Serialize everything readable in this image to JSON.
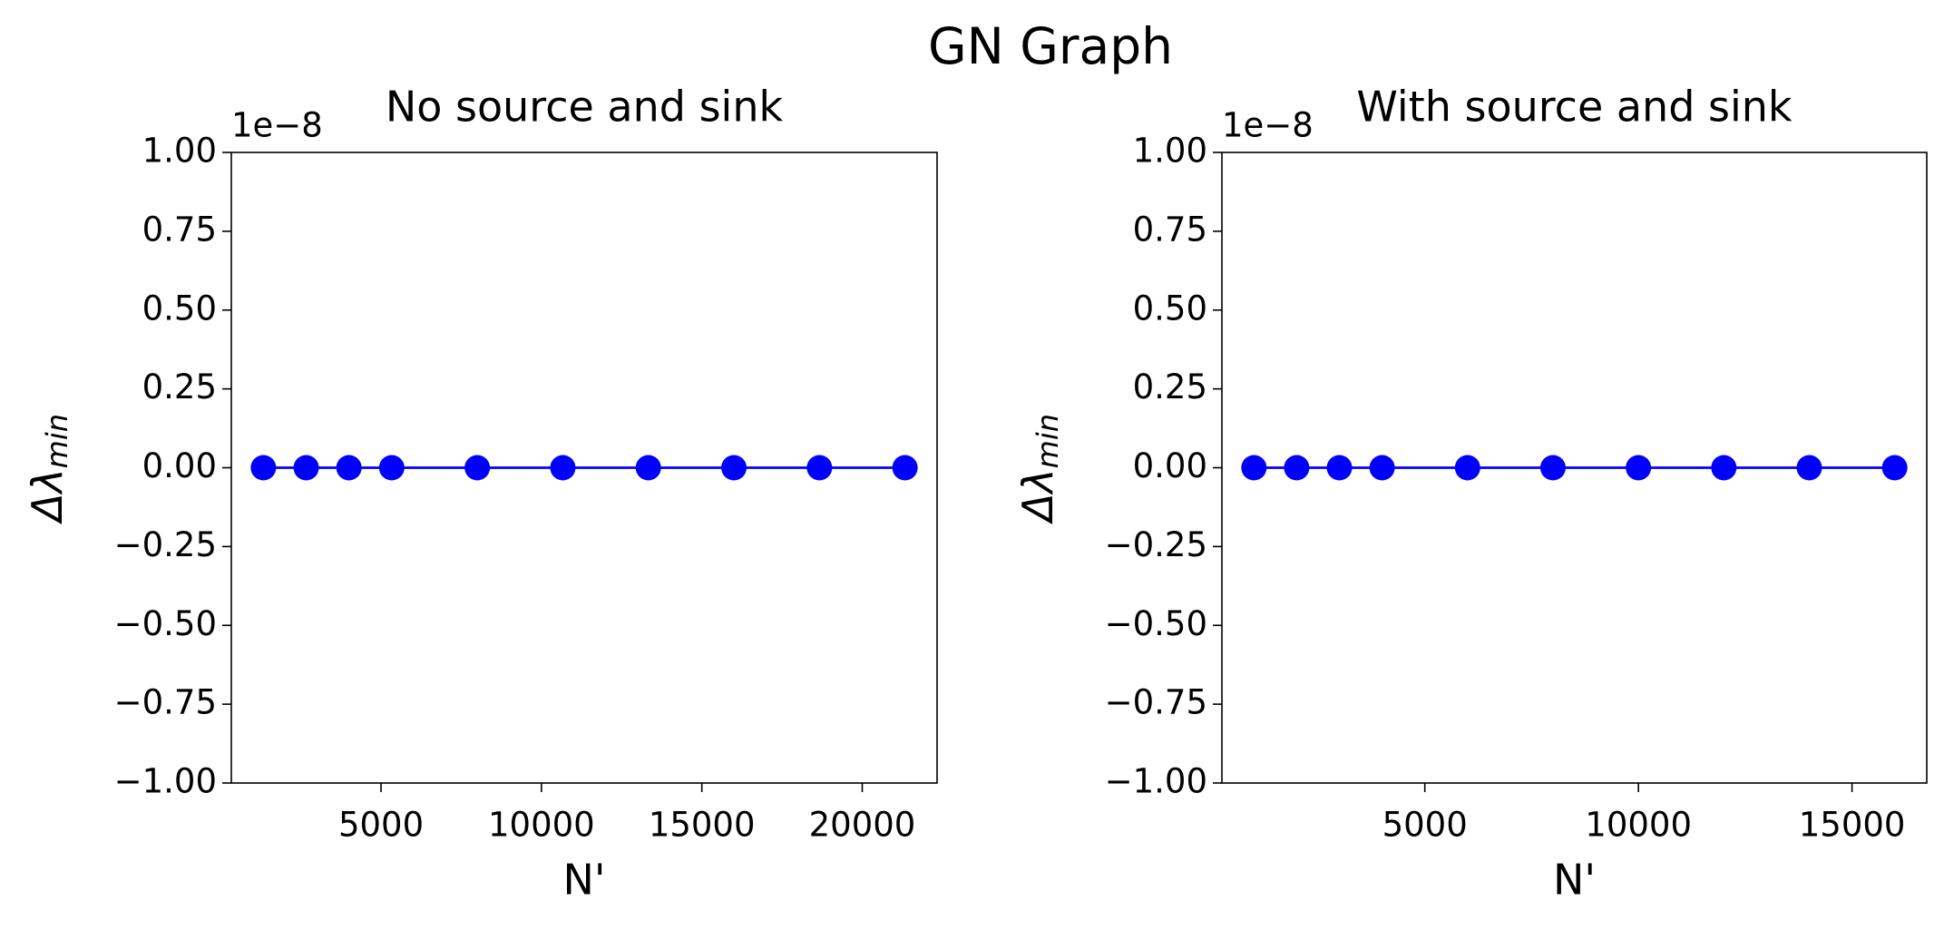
{
  "title": "GN Graph",
  "chart_data": [
    {
      "type": "line",
      "title": "No source and sink",
      "xlabel": "N'",
      "ylabel": "Δλ",
      "ylabel_sub": "min",
      "x": [
        1333,
        2667,
        4000,
        5333,
        8000,
        10667,
        13333,
        16000,
        18667,
        21333
      ],
      "values": [
        0,
        0,
        0,
        0,
        0,
        0,
        0,
        0,
        0,
        0
      ],
      "color": "#0000ff",
      "marker": "o",
      "xlim": [
        333,
        22333
      ],
      "xticks": [
        5000,
        10000,
        15000,
        20000
      ],
      "ylim": [
        -1e-08,
        1e-08
      ],
      "offset_label": "1e−8",
      "yticks": [
        {
          "value": -1e-08,
          "label": "−1.00"
        },
        {
          "value": -7.5e-09,
          "label": "−0.75"
        },
        {
          "value": -5e-09,
          "label": "−0.50"
        },
        {
          "value": -2.5e-09,
          "label": "−0.25"
        },
        {
          "value": 0,
          "label": "0.00"
        },
        {
          "value": 2.5e-09,
          "label": "0.25"
        },
        {
          "value": 5e-09,
          "label": "0.50"
        },
        {
          "value": 7.5e-09,
          "label": "0.75"
        },
        {
          "value": 1e-08,
          "label": "1.00"
        }
      ]
    },
    {
      "type": "line",
      "title": "With source and sink",
      "xlabel": "N'",
      "ylabel": "Δλ",
      "ylabel_sub": "min",
      "x": [
        1000,
        2000,
        3000,
        4000,
        6000,
        8000,
        10000,
        12000,
        14000,
        16000
      ],
      "values": [
        0,
        0,
        0,
        0,
        0,
        0,
        0,
        0,
        0,
        0
      ],
      "color": "#0000ff",
      "marker": "o",
      "xlim": [
        250,
        16750
      ],
      "xticks": [
        5000,
        10000,
        15000
      ],
      "ylim": [
        -1e-08,
        1e-08
      ],
      "offset_label": "1e−8",
      "yticks": [
        {
          "value": -1e-08,
          "label": "−1.00"
        },
        {
          "value": -7.5e-09,
          "label": "−0.75"
        },
        {
          "value": -5e-09,
          "label": "−0.50"
        },
        {
          "value": -2.5e-09,
          "label": "−0.25"
        },
        {
          "value": 0,
          "label": "0.00"
        },
        {
          "value": 2.5e-09,
          "label": "0.25"
        },
        {
          "value": 5e-09,
          "label": "0.50"
        },
        {
          "value": 7.5e-09,
          "label": "0.75"
        },
        {
          "value": 1e-08,
          "label": "1.00"
        }
      ]
    }
  ]
}
